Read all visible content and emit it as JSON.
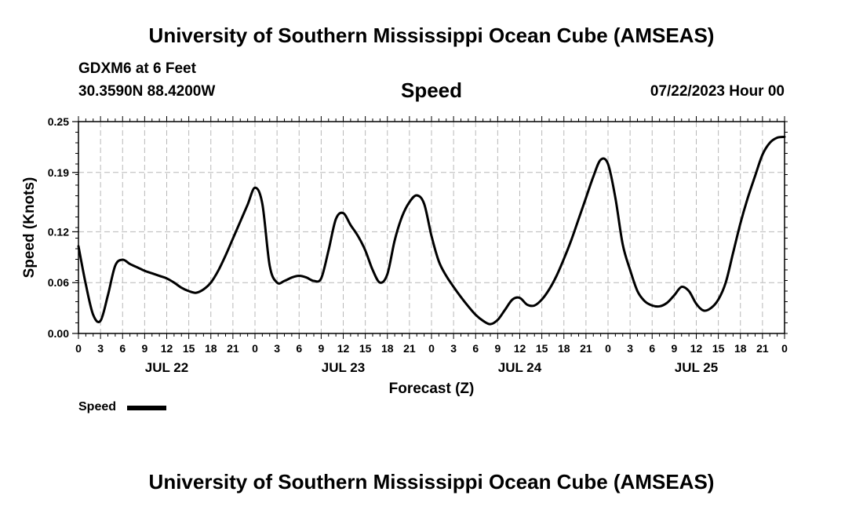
{
  "header": {
    "title_top": "University of Southern Mississippi Ocean Cube (AMSEAS)",
    "station": "GDXM6 at 6 Feet",
    "coords": "30.3590N  88.4200W",
    "datetime": "07/22/2023 Hour 00",
    "title_bottom": "University of Southern Mississippi Ocean Cube (AMSEAS)"
  },
  "legend": {
    "label": "Speed"
  },
  "chart_data": {
    "type": "line",
    "title": "Speed",
    "xlabel": "Forecast (Z)",
    "ylabel": "Speed (Knots)",
    "xlim": [
      0,
      96
    ],
    "ylim": [
      0,
      0.25
    ],
    "yticks": [
      0.0,
      0.06,
      0.12,
      0.19,
      0.25
    ],
    "ytick_labels": [
      "0.00",
      "0.06",
      "0.12",
      "0.19",
      "0.25"
    ],
    "xticks": [
      0,
      3,
      6,
      9,
      12,
      15,
      18,
      21,
      24,
      27,
      30,
      33,
      36,
      39,
      42,
      45,
      48,
      51,
      54,
      57,
      60,
      63,
      66,
      69,
      72,
      75,
      78,
      81,
      84,
      87,
      90,
      93,
      96
    ],
    "xtick_labels": [
      "0",
      "3",
      "6",
      "9",
      "12",
      "15",
      "18",
      "21",
      "0",
      "3",
      "6",
      "9",
      "12",
      "15",
      "18",
      "21",
      "0",
      "3",
      "6",
      "9",
      "12",
      "15",
      "18",
      "21",
      "0",
      "3",
      "6",
      "9",
      "12",
      "15",
      "18",
      "21",
      "0"
    ],
    "day_labels": [
      {
        "hour": 12,
        "label": "JUL 22"
      },
      {
        "hour": 36,
        "label": "JUL 23"
      },
      {
        "hour": 60,
        "label": "JUL 24"
      },
      {
        "hour": 84,
        "label": "JUL 25"
      }
    ],
    "grid": true,
    "series": [
      {
        "name": "Speed",
        "color": "#000000",
        "x": [
          0,
          1,
          2,
          3,
          4,
          5,
          6,
          7,
          8,
          9,
          10,
          11,
          12,
          13,
          14,
          15,
          16,
          17,
          18,
          19,
          20,
          21,
          22,
          23,
          24,
          25,
          26,
          27,
          28,
          29,
          30,
          31,
          32,
          33,
          34,
          35,
          36,
          37,
          38,
          39,
          40,
          41,
          42,
          43,
          44,
          45,
          46,
          47,
          48,
          49,
          50,
          51,
          52,
          53,
          54,
          55,
          56,
          57,
          58,
          59,
          60,
          61,
          62,
          63,
          64,
          65,
          66,
          67,
          68,
          69,
          70,
          71,
          72,
          73,
          74,
          75,
          76,
          77,
          78,
          79,
          80,
          81,
          82,
          83,
          84,
          85,
          86,
          87,
          88,
          89,
          90,
          91,
          92,
          93,
          94,
          95,
          96
        ],
        "values": [
          0.103,
          0.058,
          0.022,
          0.015,
          0.045,
          0.08,
          0.087,
          0.082,
          0.078,
          0.074,
          0.071,
          0.068,
          0.065,
          0.06,
          0.054,
          0.05,
          0.048,
          0.052,
          0.06,
          0.074,
          0.092,
          0.112,
          0.132,
          0.152,
          0.172,
          0.153,
          0.08,
          0.06,
          0.062,
          0.066,
          0.068,
          0.066,
          0.062,
          0.065,
          0.098,
          0.135,
          0.142,
          0.128,
          0.115,
          0.098,
          0.075,
          0.06,
          0.07,
          0.11,
          0.138,
          0.155,
          0.163,
          0.153,
          0.115,
          0.085,
          0.068,
          0.055,
          0.043,
          0.032,
          0.022,
          0.015,
          0.011,
          0.016,
          0.028,
          0.04,
          0.042,
          0.034,
          0.033,
          0.04,
          0.052,
          0.068,
          0.088,
          0.11,
          0.135,
          0.16,
          0.185,
          0.205,
          0.2,
          0.16,
          0.105,
          0.075,
          0.05,
          0.038,
          0.033,
          0.032,
          0.036,
          0.045,
          0.055,
          0.05,
          0.035,
          0.027,
          0.03,
          0.04,
          0.06,
          0.095,
          0.13,
          0.16,
          0.186,
          0.211,
          0.225,
          0.231,
          0.232
        ]
      }
    ]
  }
}
